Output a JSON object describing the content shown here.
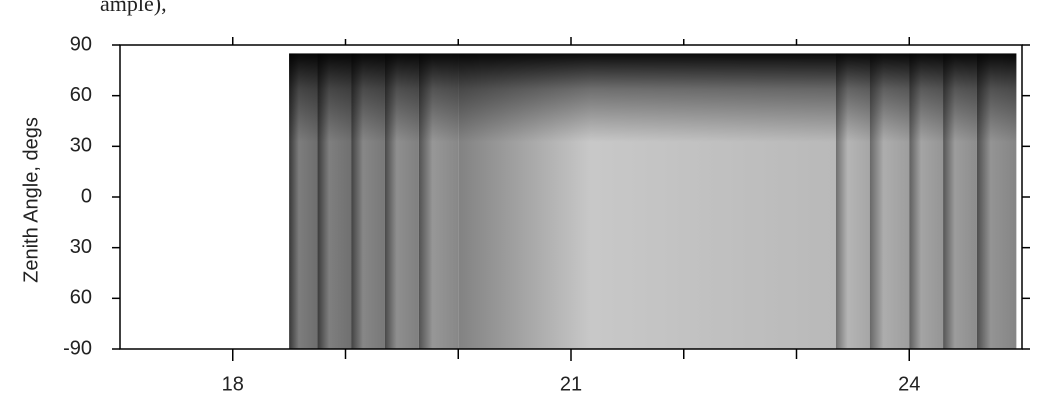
{
  "chart_data": {
    "type": "heatmap",
    "caption_fragment": "ample),",
    "ylabel": "Zenith Angle, degs",
    "xlim": [
      17,
      25
    ],
    "xticks": [
      18,
      21,
      24
    ],
    "x_minor_ticks": [
      19,
      20,
      22,
      23
    ],
    "ylim": [
      -90,
      90
    ],
    "yticks": [
      90,
      60,
      30,
      0,
      {
        "value": -30,
        "label": "30"
      },
      {
        "value": -60,
        "label": "60"
      },
      -90
    ],
    "x_edges": [
      18.5,
      18.75,
      19.05,
      19.35,
      19.65,
      20.0,
      23.35,
      23.65,
      24.0,
      24.3,
      24.6,
      24.95
    ],
    "y_extent": [
      -90,
      85
    ]
  }
}
